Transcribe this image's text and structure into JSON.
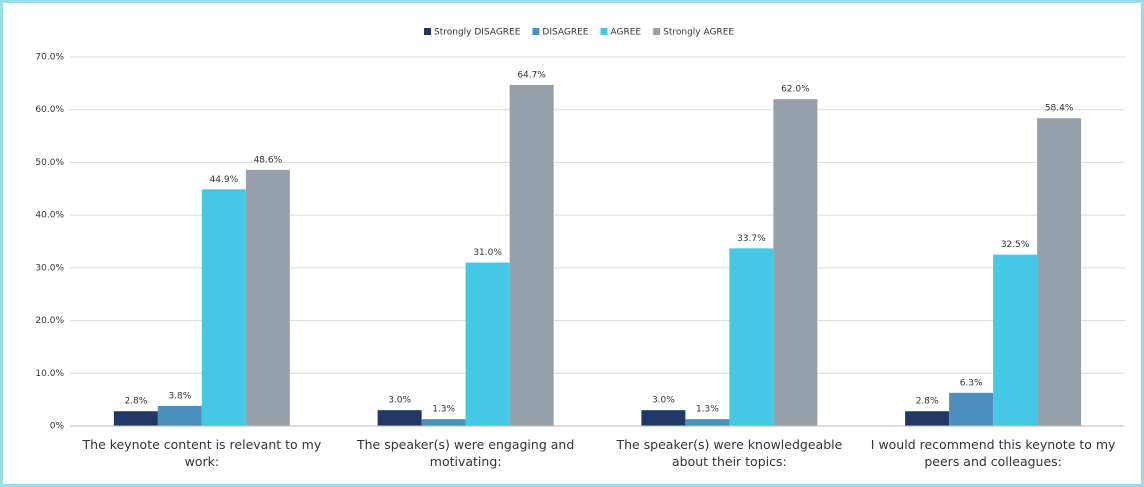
{
  "chart_data": {
    "type": "bar",
    "categories": [
      "The keynote content is relevant to my work:",
      "The speaker(s) were engaging and motivating:",
      "The speaker(s) were knowledgeable about their topics:",
      "I would recommend this keynote to my peers and colleagues:"
    ],
    "series": [
      {
        "name": "Strongly DISAGREE",
        "color": "#1f3864",
        "values": [
          2.8,
          3.0,
          3.0,
          2.8
        ],
        "value_labels": [
          "2.8%",
          "3.0%",
          "3.0%",
          "2.8%"
        ]
      },
      {
        "name": "DISAGREE",
        "color": "#4a8fbd",
        "values": [
          3.8,
          1.3,
          1.3,
          6.3
        ],
        "value_labels": [
          "3.8%",
          "1.3%",
          "1.3%",
          "6.3%"
        ]
      },
      {
        "name": "AGREE",
        "color": "#45c8e6",
        "values": [
          44.9,
          31.0,
          33.7,
          32.5
        ],
        "value_labels": [
          "44.9%",
          "31.0%",
          "33.7%",
          "32.5%"
        ]
      },
      {
        "name": "Strongly AGREE",
        "color": "#97a0aa",
        "values": [
          48.6,
          64.7,
          62.0,
          58.4
        ],
        "value_labels": [
          "48.6%",
          "64.7%",
          "62.0%",
          "58.4%"
        ]
      }
    ],
    "ylim": [
      0,
      70
    ],
    "yticks": [
      {
        "value": 0,
        "label": "0%"
      },
      {
        "value": 10,
        "label": "10.0%"
      },
      {
        "value": 20,
        "label": "20.0%"
      },
      {
        "value": 30,
        "label": "30.0%"
      },
      {
        "value": 40,
        "label": "40.0%"
      },
      {
        "value": 50,
        "label": "50.0%"
      },
      {
        "value": 60,
        "label": "60.0%"
      },
      {
        "value": 70,
        "label": "70.0%"
      }
    ],
    "grid": true,
    "legend": "top"
  }
}
